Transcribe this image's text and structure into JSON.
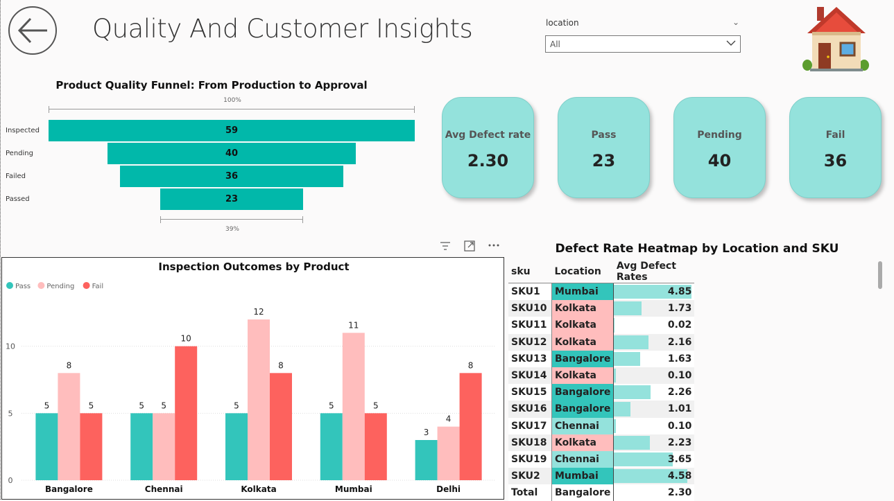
{
  "header": {
    "title": "Quality And Customer Insights",
    "back_icon": "back-arrow-icon",
    "home_icon": "house-icon"
  },
  "slicer": {
    "label": "location",
    "value": "All"
  },
  "funnel": {
    "title": "Product Quality Funnel: From Production to Approval",
    "top_pct": "100%",
    "bottom_pct": "39%",
    "color": "#01b8aa",
    "stages": [
      {
        "label": "Inspected",
        "value": 59
      },
      {
        "label": "Pending",
        "value": 40
      },
      {
        "label": "Failed",
        "value": 36
      },
      {
        "label": "Passed",
        "value": 23
      }
    ]
  },
  "cards": [
    {
      "label": "Avg Defect rate",
      "value": "2.30"
    },
    {
      "label": "Pass",
      "value": "23"
    },
    {
      "label": "Pending",
      "value": "40"
    },
    {
      "label": "Fail",
      "value": "36"
    }
  ],
  "chart_data": {
    "type": "bar",
    "title": "Inspection Outcomes by Product",
    "categories": [
      "Bangalore",
      "Chennai",
      "Kolkata",
      "Mumbai",
      "Delhi"
    ],
    "series": [
      {
        "name": "Pass",
        "color": "#33c5bb",
        "values": [
          5,
          5,
          5,
          5,
          3
        ]
      },
      {
        "name": "Pending",
        "color": "#ffbdbd",
        "values": [
          8,
          5,
          12,
          11,
          4
        ]
      },
      {
        "name": "Fail",
        "color": "#fd625e",
        "values": [
          5,
          10,
          8,
          5,
          8
        ]
      }
    ],
    "yticks": [
      0,
      5,
      10
    ],
    "ylim": [
      0,
      13.5
    ],
    "legend_position": "top-left",
    "grid": true
  },
  "heatmap": {
    "title": "Defect Rate Heatmap by Location and SKU",
    "columns": [
      "sku",
      "Location",
      "Avg Defect Rates"
    ],
    "max_rate": 4.85,
    "rows": [
      {
        "sku": "SKU1",
        "location": "Mumbai",
        "rate": "4.85",
        "color": "#33c5bb"
      },
      {
        "sku": "SKU10",
        "location": "Kolkata",
        "rate": "1.73",
        "color": "#ffbdbd"
      },
      {
        "sku": "SKU11",
        "location": "Kolkata",
        "rate": "0.02",
        "color": "#ffbdbd"
      },
      {
        "sku": "SKU12",
        "location": "Kolkata",
        "rate": "2.16",
        "color": "#ffbdbd"
      },
      {
        "sku": "SKU13",
        "location": "Bangalore",
        "rate": "1.63",
        "color": "#33c5bb"
      },
      {
        "sku": "SKU14",
        "location": "Kolkata",
        "rate": "0.10",
        "color": "#ffbdbd"
      },
      {
        "sku": "SKU15",
        "location": "Bangalore",
        "rate": "2.26",
        "color": "#33c5bb"
      },
      {
        "sku": "SKU16",
        "location": "Bangalore",
        "rate": "1.01",
        "color": "#33c5bb"
      },
      {
        "sku": "SKU17",
        "location": "Chennai",
        "rate": "0.10",
        "color": "#94e2dc"
      },
      {
        "sku": "SKU18",
        "location": "Kolkata",
        "rate": "2.23",
        "color": "#ffbdbd"
      },
      {
        "sku": "SKU19",
        "location": "Chennai",
        "rate": "3.65",
        "color": "#94e2dc"
      },
      {
        "sku": "SKU2",
        "location": "Mumbai",
        "rate": "4.58",
        "color": "#33c5bb"
      }
    ],
    "total": {
      "label": "Total",
      "location": "Bangalore",
      "rate": "2.30"
    }
  }
}
